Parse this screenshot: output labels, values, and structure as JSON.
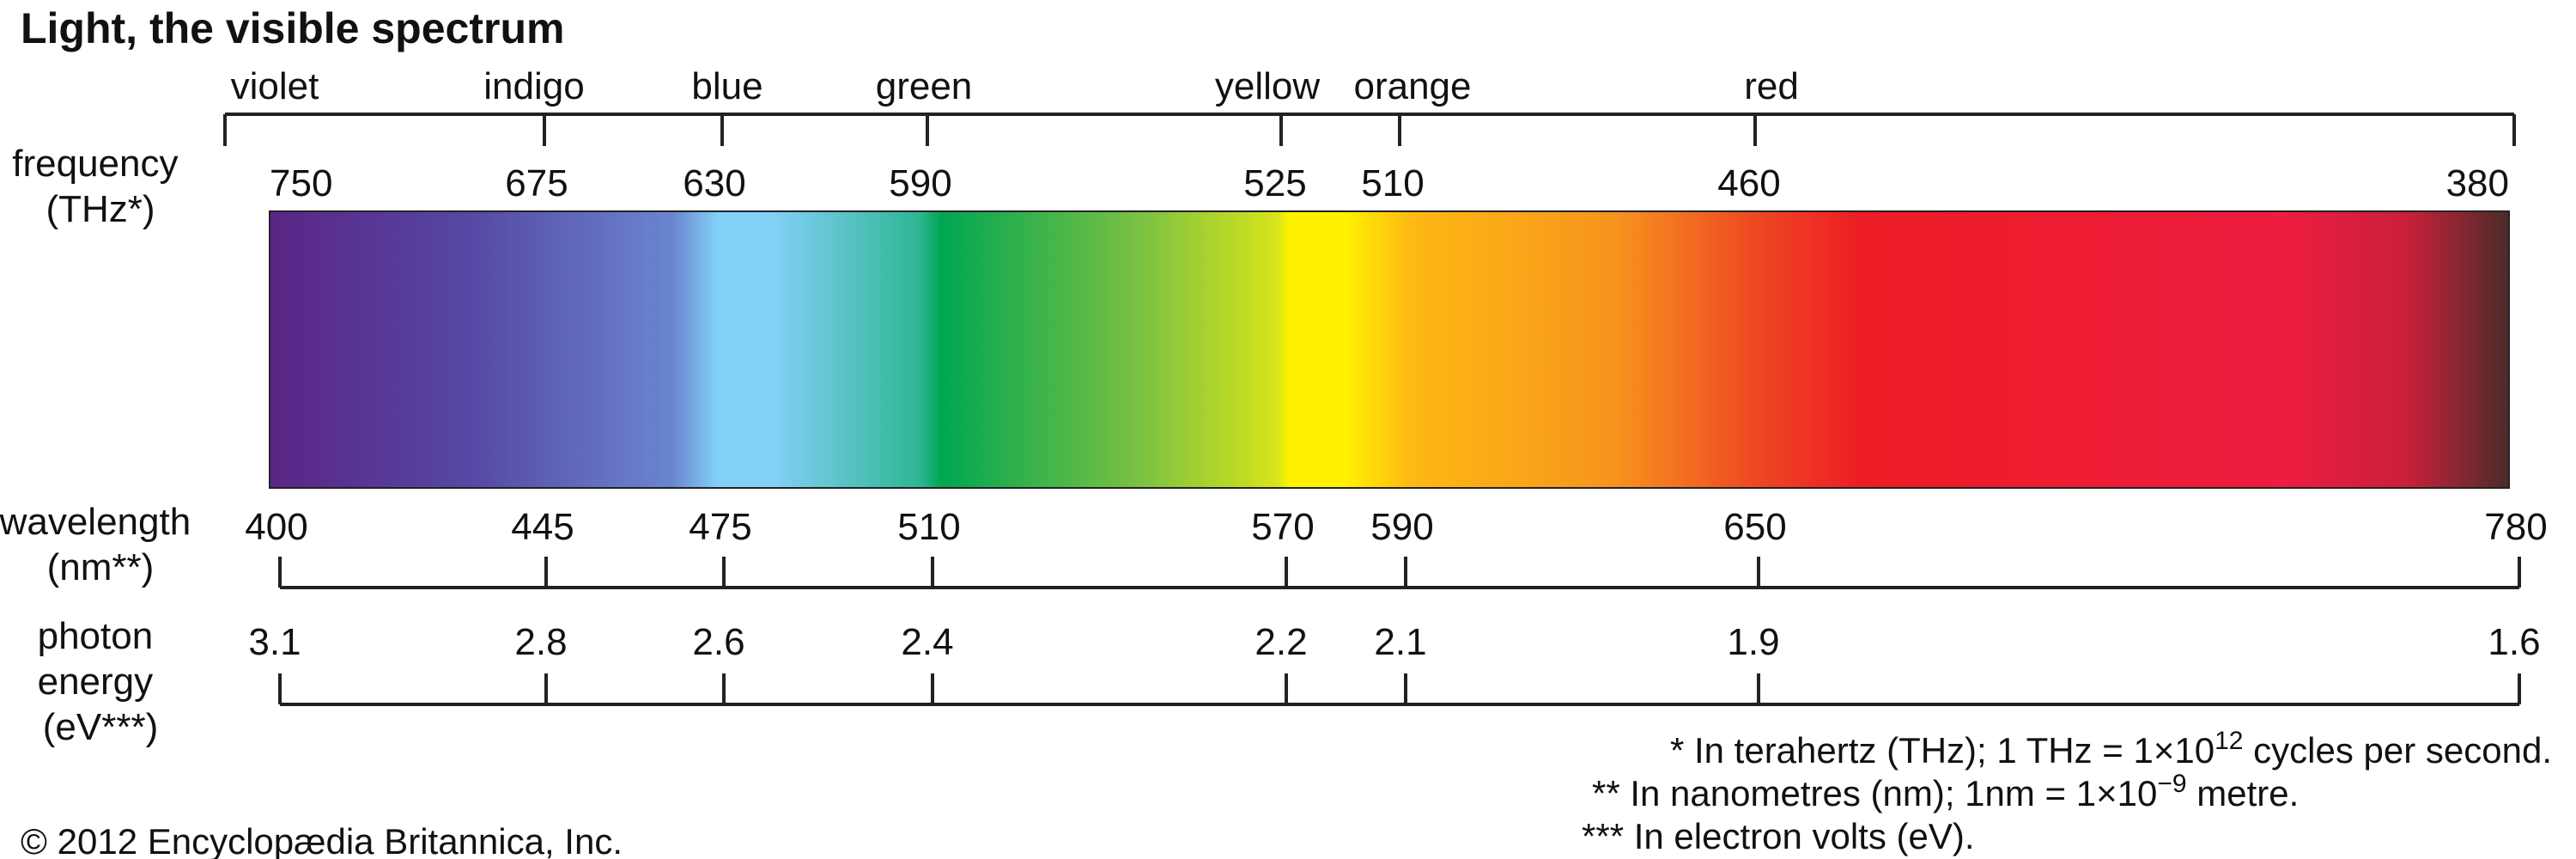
{
  "title": "Light, the visible spectrum",
  "color_names": [
    {
      "label": "violet",
      "frequency_thz": 750
    },
    {
      "label": "indigo",
      "frequency_thz": 675
    },
    {
      "label": "blue",
      "frequency_thz": 630
    },
    {
      "label": "green",
      "frequency_thz": 590
    },
    {
      "label": "yellow",
      "frequency_thz": 525
    },
    {
      "label": "orange",
      "frequency_thz": 510
    },
    {
      "label": "red",
      "frequency_thz": 460
    }
  ],
  "frequency": {
    "label_lines": [
      "frequency",
      "(THz*)"
    ],
    "ticks": [
      "750",
      "675",
      "630",
      "590",
      "525",
      "510",
      "460",
      "380"
    ]
  },
  "wavelength": {
    "label_lines": [
      "wavelength",
      "(nm**)"
    ],
    "ticks": [
      "400",
      "445",
      "475",
      "510",
      "570",
      "590",
      "650",
      "780"
    ]
  },
  "photon_energy": {
    "label_lines": [
      "photon",
      "energy",
      "(eV***)"
    ],
    "ticks": [
      "3.1",
      "2.8",
      "2.6",
      "2.4",
      "2.2",
      "2.1",
      "1.9",
      "1.6"
    ]
  },
  "spectrum_colors": [
    "#5b2585",
    "#5548a4",
    "#6a86cf",
    "#82d0f6",
    "#00a651",
    "#7dc242",
    "#fff200",
    "#f7941d",
    "#ed1c24",
    "#ed1c40",
    "#4a2c2a"
  ],
  "footnotes": {
    "thz": {
      "pre": "* In terahertz (THz); 1 THz = 1×10",
      "sup": "12",
      "post": " cycles per second."
    },
    "nm": {
      "pre": "** In nanometres (nm); 1nm = 1×10",
      "sup": "−9",
      "post": " metre."
    },
    "ev": {
      "pre": "*** In electron volts (eV).",
      "sup": "",
      "post": ""
    }
  },
  "copyright": "© 2012 Encyclopædia Britannica, Inc."
}
